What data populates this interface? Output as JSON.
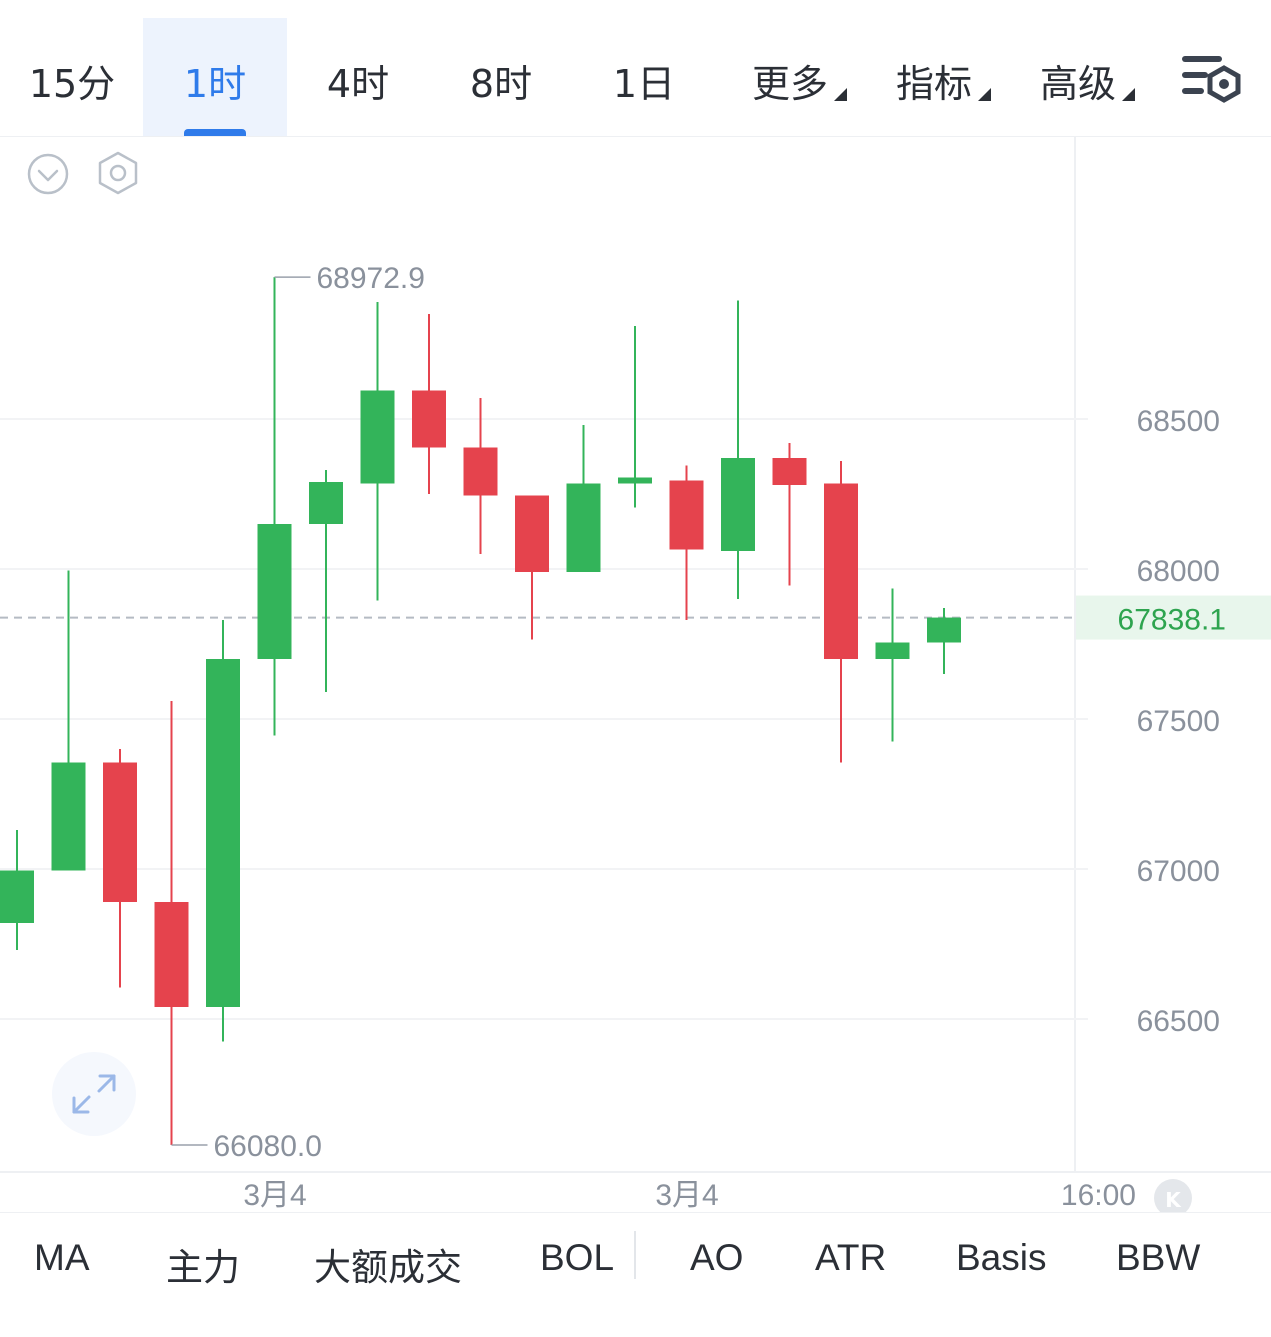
{
  "timeframes": [
    {
      "label": "15分",
      "active": false
    },
    {
      "label": "1时",
      "active": true
    },
    {
      "label": "4时",
      "active": false
    },
    {
      "label": "8时",
      "active": false
    },
    {
      "label": "1日",
      "active": false
    }
  ],
  "dropdowns": [
    {
      "label": "更多"
    },
    {
      "label": "指标"
    },
    {
      "label": "高级"
    }
  ],
  "icons": {
    "settings": "chart-settings-icon",
    "collapse": "chevron-down-circle-icon",
    "hexagon": "hexagon-settings-icon",
    "expand": "expand-arrows-icon",
    "k_badge": "k-badge-icon"
  },
  "colors": {
    "up": "#33b45a",
    "down": "#e5434d",
    "accent": "#2f7bea",
    "current_price_bg": "#e8f6ec"
  },
  "chart_data": {
    "type": "candlestick",
    "interval": "1时",
    "ylim": [
      65800,
      69450
    ],
    "y_ticks": [
      68500,
      68000,
      67500,
      67000,
      66500
    ],
    "current_price": 67838.1,
    "current_price_label": "67838.1",
    "high_label": "68972.9",
    "low_label": "66080.0",
    "high_value": 68972.9,
    "low_value": 66080.0,
    "x_labels": [
      "3月4",
      "3月4",
      "16:00"
    ],
    "candles": [
      {
        "o": 66820,
        "c": 66995,
        "h": 67130,
        "l": 66730
      },
      {
        "o": 66995,
        "c": 67355,
        "h": 67995,
        "l": 66995
      },
      {
        "o": 67355,
        "c": 66890,
        "h": 67400,
        "l": 66605
      },
      {
        "o": 66890,
        "c": 66540,
        "h": 67560,
        "l": 66080
      },
      {
        "o": 66540,
        "c": 67700,
        "h": 67830,
        "l": 66425
      },
      {
        "o": 67700,
        "c": 68150,
        "h": 68972.9,
        "l": 67445
      },
      {
        "o": 68150,
        "c": 68290,
        "h": 68330,
        "l": 67590
      },
      {
        "o": 68285,
        "c": 68595,
        "h": 68890,
        "l": 67895
      },
      {
        "o": 68595,
        "c": 68405,
        "h": 68850,
        "l": 68250
      },
      {
        "o": 68405,
        "c": 68245,
        "h": 68570,
        "l": 68050
      },
      {
        "o": 68245,
        "c": 67990,
        "h": 68245,
        "l": 67765
      },
      {
        "o": 67990,
        "c": 68285,
        "h": 68480,
        "l": 67990
      },
      {
        "o": 68285,
        "c": 68305,
        "h": 68810,
        "l": 68205
      },
      {
        "o": 68295,
        "c": 68065,
        "h": 68345,
        "l": 67830
      },
      {
        "o": 68060,
        "c": 68370,
        "h": 68895,
        "l": 67900
      },
      {
        "o": 68370,
        "c": 68280,
        "h": 68420,
        "l": 67945
      },
      {
        "o": 68285,
        "c": 67700,
        "h": 68360,
        "l": 67355
      },
      {
        "o": 67700,
        "c": 67755,
        "h": 67935,
        "l": 67425
      },
      {
        "o": 67755,
        "c": 67838.1,
        "h": 67870,
        "l": 67650
      }
    ]
  },
  "indicators": [
    {
      "label": "MA"
    },
    {
      "label": "主力"
    },
    {
      "label": "大额成交"
    },
    {
      "label": "BOL"
    },
    {
      "label": "AO"
    },
    {
      "label": "ATR"
    },
    {
      "label": "Basis"
    },
    {
      "label": "BBW"
    }
  ]
}
